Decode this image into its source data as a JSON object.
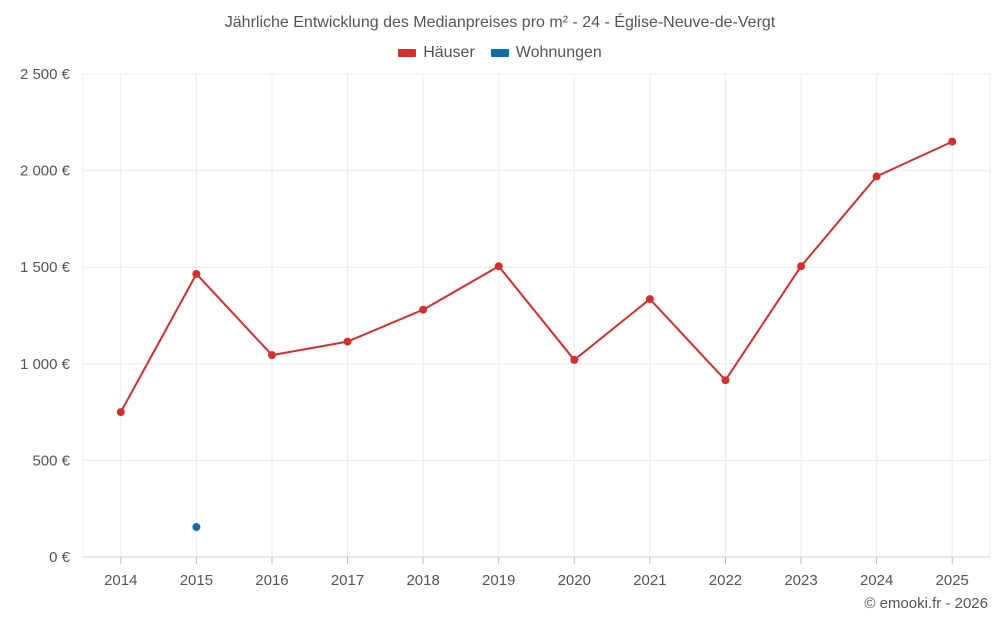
{
  "chart_data": {
    "type": "line",
    "title": "Jährliche Entwicklung des Medianpreises pro m² - 24 - Église-Neuve-de-Vergt",
    "x": [
      "2014",
      "2015",
      "2016",
      "2017",
      "2018",
      "2019",
      "2020",
      "2021",
      "2022",
      "2023",
      "2024",
      "2025"
    ],
    "series": [
      {
        "name": "Häuser",
        "color": "#d32f2f",
        "values": [
          750,
          1465,
          1045,
          1115,
          1280,
          1505,
          1020,
          1335,
          915,
          1505,
          1970,
          2150
        ]
      },
      {
        "name": "Wohnungen",
        "color": "#0f6aa8",
        "values": [
          null,
          155,
          null,
          null,
          null,
          null,
          null,
          null,
          null,
          null,
          null,
          null
        ]
      }
    ],
    "ylim": [
      0,
      2500
    ],
    "yticks": [
      0,
      500,
      1000,
      1500,
      2000,
      2500
    ],
    "ytick_labels": [
      "0 €",
      "500 €",
      "1 000 €",
      "1 500 €",
      "2 000 €",
      "2 500 €"
    ],
    "grid": true,
    "legend_position": "top-center"
  },
  "credit": "© emooki.fr - 2026"
}
